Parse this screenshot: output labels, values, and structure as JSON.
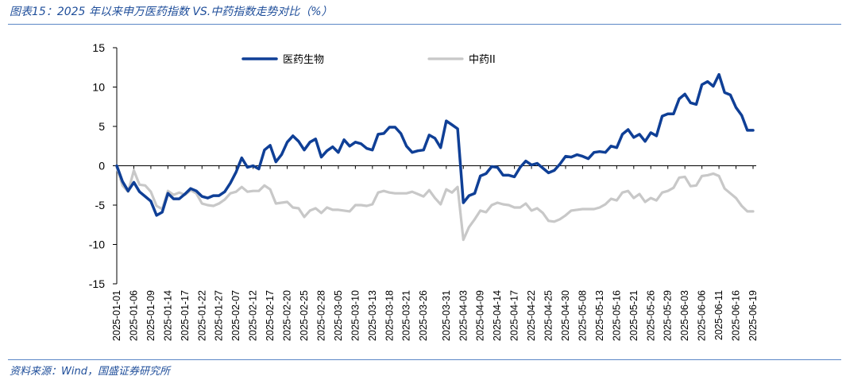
{
  "header": {
    "title": "图表15：2025 年以来申万医药指数 VS.中药指数走势对比（%）"
  },
  "footer": {
    "source": "资料来源：Wind，国盛证券研究所"
  },
  "colors": {
    "series1": "#0f3f96",
    "series2": "#c8c8c8",
    "rule": "#5b87c6",
    "title": "#1f4e9a"
  },
  "chart_data": {
    "type": "line",
    "title": "",
    "xlabel": "",
    "ylabel": "",
    "ylim": [
      -15,
      15
    ],
    "yticks": [
      15,
      10,
      5,
      0,
      -5,
      -10,
      -15
    ],
    "ytick_labels": [
      "15",
      "10",
      "5",
      "0",
      "-5",
      "-10",
      "-15"
    ],
    "xtick_labels": [
      "2025-01-01",
      "2025-01-06",
      "2025-01-09",
      "2025-01-14",
      "2025-01-17",
      "2025-01-22",
      "2025-01-27",
      "2025-02-07",
      "2025-02-12",
      "2025-02-17",
      "2025-02-20",
      "2025-02-25",
      "2025-02-28",
      "2025-03-05",
      "2025-03-10",
      "2025-03-13",
      "2025-03-18",
      "2025-03-21",
      "2025-03-26",
      "2025-03-31",
      "2025-04-03",
      "2025-04-09",
      "2025-04-14",
      "2025-04-17",
      "2025-04-22",
      "2025-04-25",
      "2025-04-30",
      "2025-05-08",
      "2025-05-13",
      "2025-05-16",
      "2025-05-21",
      "2025-05-26",
      "2025-05-29",
      "2025-06-03",
      "2025-06-06",
      "2025-06-11",
      "2025-06-16",
      "2025-06-19"
    ],
    "grid": false,
    "legend_position": "top",
    "series": [
      {
        "name": "医药生物",
        "values": [
          0.0,
          -2.0,
          -3.2,
          -2.1,
          -3.3,
          -3.9,
          -4.5,
          -6.3,
          -5.9,
          -3.5,
          -4.2,
          -4.2,
          -3.6,
          -2.9,
          -3.2,
          -3.9,
          -4.1,
          -3.8,
          -3.8,
          -3.3,
          -2.2,
          -0.8,
          1.0,
          -0.2,
          0.0,
          -0.4,
          2.0,
          2.6,
          0.5,
          1.4,
          3.0,
          3.8,
          3.1,
          2.0,
          3.0,
          3.4,
          1.1,
          1.9,
          2.4,
          1.7,
          3.3,
          2.5,
          3.0,
          2.8,
          2.2,
          2.0,
          4.0,
          4.1,
          4.9,
          4.9,
          4.1,
          2.5,
          1.7,
          1.9,
          2.0,
          3.9,
          3.5,
          2.3,
          5.7,
          5.2,
          4.7,
          -4.7,
          -3.8,
          -3.5,
          -1.3,
          -1.0,
          -0.1,
          -0.2,
          -1.2,
          -1.2,
          -1.4,
          -0.2,
          0.6,
          0.1,
          0.3,
          -0.3,
          -0.9,
          -0.6,
          0.2,
          1.2,
          1.1,
          1.4,
          1.2,
          0.9,
          1.7,
          1.8,
          1.7,
          2.5,
          2.3,
          4.0,
          4.6,
          3.6,
          4.0,
          3.1,
          4.2,
          3.8,
          6.3,
          6.6,
          6.6,
          8.5,
          9.1,
          8.0,
          7.8,
          10.3,
          10.7,
          10.1,
          11.6,
          9.3,
          9.0,
          7.4,
          6.4,
          4.5,
          4.5
        ]
      },
      {
        "name": "中药II",
        "values": [
          -0.2,
          -2.5,
          -3.3,
          -0.6,
          -2.4,
          -2.5,
          -3.3,
          -5.1,
          -5.5,
          -3.2,
          -3.7,
          -3.4,
          -3.7,
          -3.1,
          -3.5,
          -4.8,
          -5.0,
          -5.1,
          -4.8,
          -4.3,
          -3.5,
          -3.3,
          -2.7,
          -3.3,
          -3.2,
          -3.2,
          -2.5,
          -3.0,
          -4.8,
          -4.7,
          -4.6,
          -5.3,
          -5.4,
          -6.5,
          -5.7,
          -5.4,
          -6.0,
          -5.3,
          -5.6,
          -5.6,
          -5.7,
          -5.8,
          -5.0,
          -5.0,
          -5.1,
          -4.9,
          -3.4,
          -3.2,
          -3.4,
          -3.5,
          -3.5,
          -3.5,
          -3.3,
          -3.6,
          -3.9,
          -3.1,
          -4.1,
          -4.9,
          -3.0,
          -3.4,
          -2.7,
          -9.4,
          -7.8,
          -6.8,
          -5.7,
          -5.9,
          -5.0,
          -4.7,
          -4.9,
          -5.0,
          -5.3,
          -5.3,
          -4.8,
          -5.7,
          -5.4,
          -6.0,
          -7.0,
          -7.1,
          -6.8,
          -6.3,
          -5.7,
          -5.6,
          -5.5,
          -5.5,
          -5.5,
          -5.3,
          -4.9,
          -4.2,
          -4.4,
          -3.4,
          -3.2,
          -4.1,
          -3.6,
          -4.6,
          -4.1,
          -4.4,
          -3.4,
          -3.2,
          -2.8,
          -1.5,
          -1.4,
          -2.6,
          -2.5,
          -1.3,
          -1.2,
          -1.0,
          -1.3,
          -2.9,
          -3.5,
          -4.1,
          -5.1,
          -5.8,
          -5.8
        ]
      }
    ]
  }
}
